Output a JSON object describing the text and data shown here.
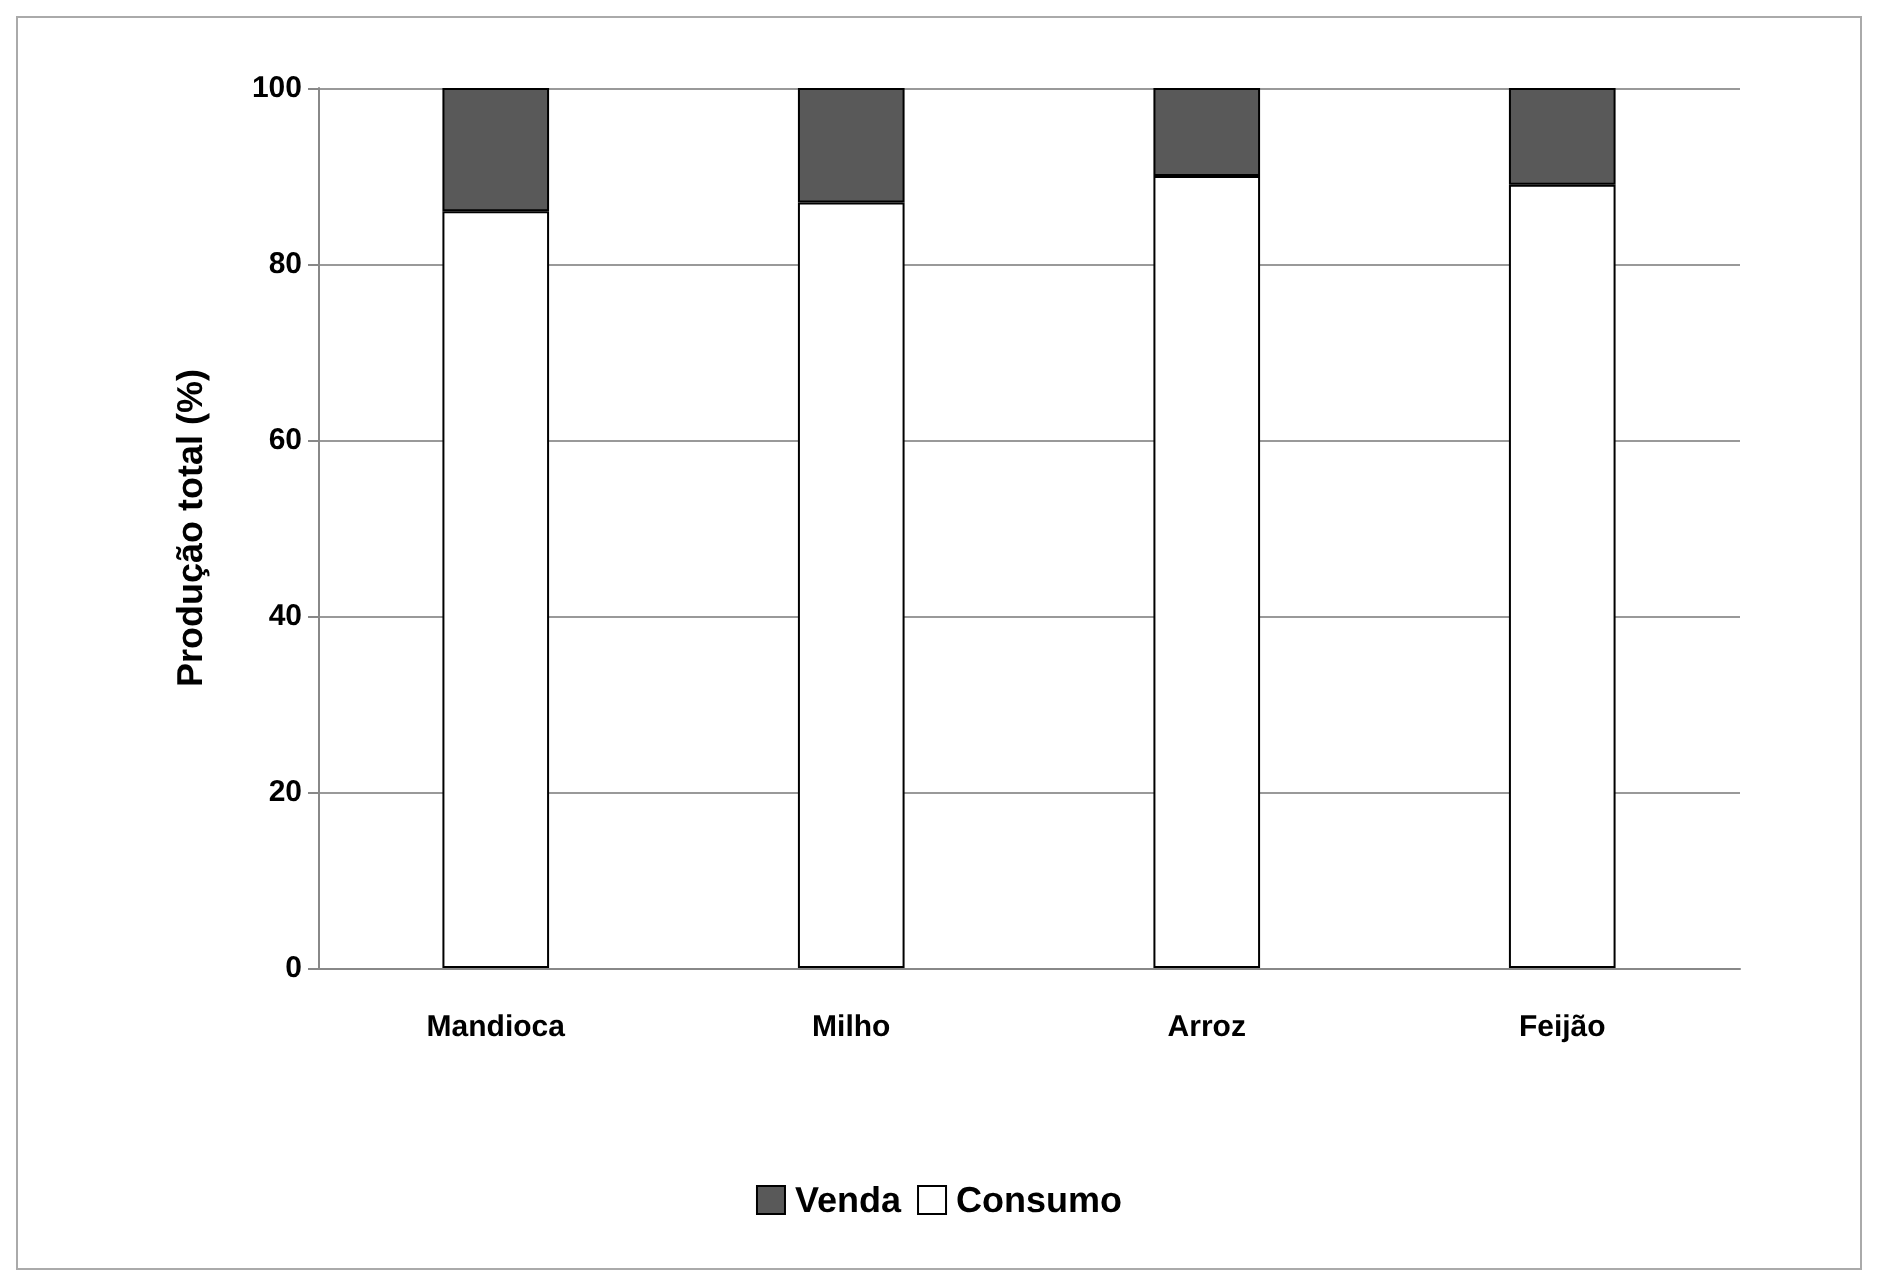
{
  "chart_data": {
    "type": "bar",
    "stacked": true,
    "categories": [
      "Mandioca",
      "Milho",
      "Arroz",
      "Feijão"
    ],
    "series": [
      {
        "name": "Consumo",
        "color": "#ffffff",
        "values": [
          86,
          87,
          90,
          89
        ]
      },
      {
        "name": "Venda",
        "color": "#595959",
        "values": [
          14,
          13,
          10,
          11
        ]
      }
    ],
    "ylabel": "Produção total (%)",
    "ylim": [
      0,
      100
    ],
    "yticks": [
      0,
      20,
      40,
      60,
      80,
      100
    ],
    "grid": "y",
    "legend": "bottom"
  }
}
